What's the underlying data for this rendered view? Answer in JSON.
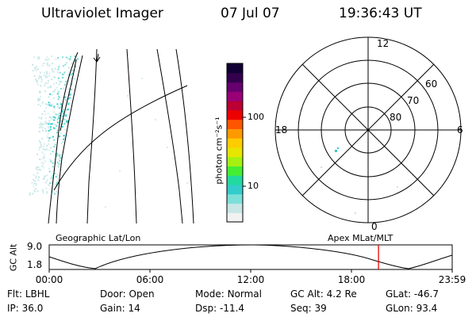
{
  "header": {
    "instrument": "Ultraviolet Imager",
    "date": "07 Jul 07",
    "time": "19:36:43 UT"
  },
  "colorbar": {
    "unit_label": "photon cm⁻²s⁻¹",
    "ticks": [
      {
        "label": "100",
        "value": 100
      },
      {
        "label": "10",
        "value": 10
      }
    ],
    "colors": [
      "#f2f2f2",
      "#c8e6e6",
      "#7de0d8",
      "#33cccc",
      "#22d9a0",
      "#44ee33",
      "#a6f011",
      "#e6e600",
      "#ffcc00",
      "#ff9900",
      "#ff5500",
      "#ee0000",
      "#bb0033",
      "#990077",
      "#66006e",
      "#33004d",
      "#110033"
    ]
  },
  "polar_plot": {
    "mlt_labels": {
      "top": "12",
      "left": "18",
      "right": "6",
      "bottom": "0"
    },
    "lat_labels": [
      "60",
      "70",
      "80"
    ]
  },
  "orbit_panel": {
    "left_caption": "Geographic Lat/Lon",
    "right_caption": "Apex MLat/MLT",
    "y_axis_label": "GC Alt",
    "y_ticks": [
      "9.0",
      "1.8"
    ],
    "x_ticks": [
      "00:00",
      "06:00",
      "12:00",
      "18:00",
      "23:59"
    ],
    "current_time_hours": 19.61,
    "marker_color": "#ee0000"
  },
  "status": {
    "row1": [
      {
        "key": "Flt:",
        "value": "LBHL"
      },
      {
        "key": "Door:",
        "value": "Open"
      },
      {
        "key": "Mode:",
        "value": "Normal"
      },
      {
        "key": "GC Alt:",
        "value": "4.2 Re"
      },
      {
        "key": "GLat:",
        "value": "-46.7"
      }
    ],
    "row2": [
      {
        "key": "IP:",
        "value": "36.0"
      },
      {
        "key": "Gain:",
        "value": "14"
      },
      {
        "key": "Dsp:",
        "value": "-11.4"
      },
      {
        "key": "Seq:",
        "value": "39"
      },
      {
        "key": "GLon:",
        "value": "93.4"
      }
    ]
  }
}
